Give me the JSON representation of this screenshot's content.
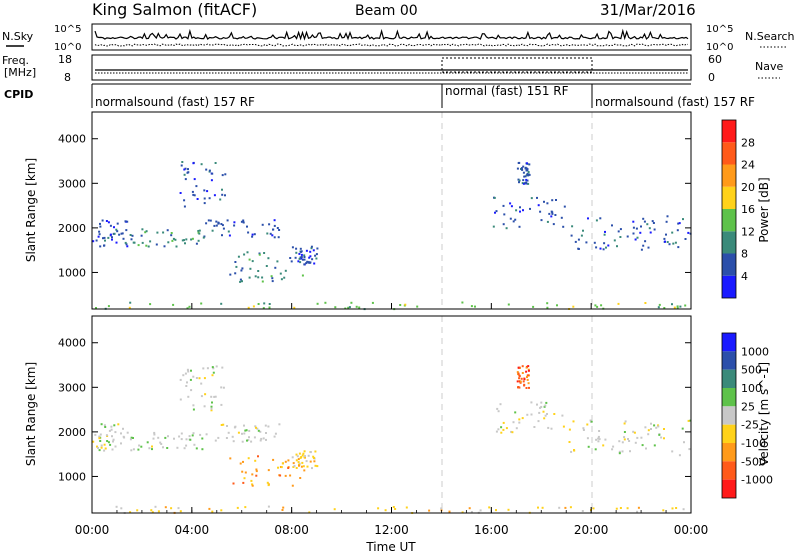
{
  "header": {
    "station": "King Salmon (fitACF)",
    "beam": "Beam 00",
    "date": "31/Mar/2016"
  },
  "status_panels": {
    "nsky_label": "N.Sky",
    "nsky_ticks": [
      "10^5",
      "10^0"
    ],
    "nsearch_label": "N.Search",
    "nsearch_ticks": [
      "10^5",
      "10^0"
    ],
    "freq_label": "Freq.",
    "freq_unit": "[MHz]",
    "freq_ticks": [
      "18",
      "8"
    ],
    "nave_label": "Nave",
    "nave_ticks": [
      "60",
      "0"
    ],
    "cpid_label": "CPID",
    "cpid_segments": [
      {
        "label": "normalsound (fast) 157 RF",
        "start_hour": 0,
        "end_hour": 14
      },
      {
        "label": "normal (fast) 151 RF",
        "start_hour": 14,
        "end_hour": 20
      },
      {
        "label": "normalsound (fast) 157 RF",
        "start_hour": 20,
        "end_hour": 24
      }
    ]
  },
  "chart_data": [
    {
      "type": "heatmap",
      "name": "power",
      "ylabel": "Slant Range [km]",
      "xlim": [
        0,
        24
      ],
      "ylim": [
        180,
        4600
      ],
      "yticks": [
        1000,
        2000,
        3000,
        4000
      ],
      "colorbar": {
        "label": "Power [dB]",
        "ticks": [
          "4",
          "8",
          "12",
          "16",
          "20",
          "24",
          "28"
        ],
        "colors": [
          "#1a1aff",
          "#2b4faa",
          "#3a8a7a",
          "#5ec24a",
          "#ffd21a",
          "#ff9a1a",
          "#ff5a1a",
          "#ff1a1a"
        ]
      },
      "clusters": [
        {
          "t": [
            0.0,
            1.5
          ],
          "r": [
            1600,
            2200
          ],
          "color_index": 1
        },
        {
          "t": [
            1.5,
            4.5
          ],
          "r": [
            1600,
            2000
          ],
          "color_index": 2
        },
        {
          "t": [
            4.5,
            7.5
          ],
          "r": [
            1800,
            2200
          ],
          "color_index": 1
        },
        {
          "t": [
            3.5,
            5.3
          ],
          "r": [
            2500,
            3500
          ],
          "color_index": 1
        },
        {
          "t": [
            5.5,
            8.5
          ],
          "r": [
            800,
            1500
          ],
          "color_index": 2
        },
        {
          "t": [
            8.0,
            9.0
          ],
          "r": [
            1200,
            1600
          ],
          "color_index": 1
        },
        {
          "t": [
            16.0,
            19.0
          ],
          "r": [
            2000,
            2700
          ],
          "color_index": 1
        },
        {
          "t": [
            19.0,
            24.0
          ],
          "r": [
            1500,
            2300
          ],
          "color_index": 1
        },
        {
          "t": [
            17.0,
            17.5
          ],
          "r": [
            3000,
            3500
          ],
          "color_index": 1
        },
        {
          "t": [
            0.0,
            24.0
          ],
          "r": [
            200,
            350
          ],
          "color_index": 3
        }
      ]
    },
    {
      "type": "heatmap",
      "name": "velocity",
      "ylabel": "Slant Range [km]",
      "xlabel": "Time UT",
      "xlim": [
        0,
        24
      ],
      "ylim": [
        180,
        4600
      ],
      "yticks": [
        1000,
        2000,
        3000,
        4000
      ],
      "xtick_labels": [
        "00:00",
        "04:00",
        "08:00",
        "12:00",
        "16:00",
        "20:00",
        "00:00"
      ],
      "colorbar": {
        "label": "Velocity [m s^-1]",
        "ticks": [
          "1000",
          "500",
          "100",
          "25",
          "-25",
          "-100",
          "-500",
          "-1000"
        ],
        "colors": [
          "#1a1aff",
          "#2b4faa",
          "#3a8a7a",
          "#5ec24a",
          "#c8c8c8",
          "#ffd21a",
          "#ff9a1a",
          "#ff5a1a",
          "#ff1a1a"
        ]
      },
      "clusters": [
        {
          "t": [
            0.0,
            1.5
          ],
          "r": [
            1600,
            2200
          ],
          "color_index": 4
        },
        {
          "t": [
            1.5,
            4.5
          ],
          "r": [
            1600,
            2000
          ],
          "color_index": 4
        },
        {
          "t": [
            4.5,
            7.5
          ],
          "r": [
            1800,
            2200
          ],
          "color_index": 4
        },
        {
          "t": [
            3.5,
            5.3
          ],
          "r": [
            2500,
            3500
          ],
          "color_index": 4
        },
        {
          "t": [
            5.5,
            8.5
          ],
          "r": [
            800,
            1500
          ],
          "color_index": 6
        },
        {
          "t": [
            8.0,
            9.0
          ],
          "r": [
            1200,
            1600
          ],
          "color_index": 5
        },
        {
          "t": [
            16.0,
            19.0
          ],
          "r": [
            2000,
            2700
          ],
          "color_index": 4
        },
        {
          "t": [
            19.0,
            24.0
          ],
          "r": [
            1500,
            2300
          ],
          "color_index": 4
        },
        {
          "t": [
            17.0,
            17.5
          ],
          "r": [
            3000,
            3500
          ],
          "color_index": 7
        },
        {
          "t": [
            0.0,
            24.0
          ],
          "r": [
            200,
            350
          ],
          "color_index": 5
        }
      ]
    }
  ]
}
